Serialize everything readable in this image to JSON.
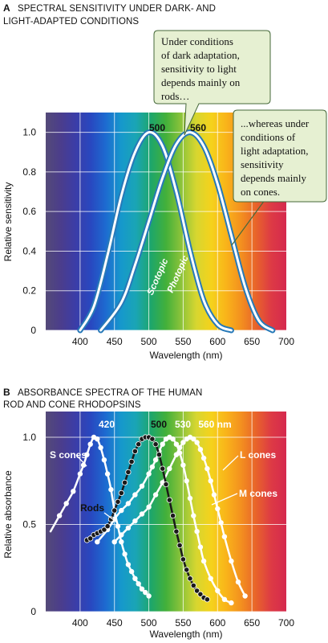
{
  "colors": {
    "spectrum": [
      "#544a78",
      "#4b3d8c",
      "#3b3da8",
      "#2848c0",
      "#1d6bd0",
      "#1698cc",
      "#1aa5b5",
      "#1ea66a",
      "#43b03a",
      "#8cc33a",
      "#d6d630",
      "#f5d21c",
      "#f9b41a",
      "#f38f1f",
      "#e8632b",
      "#dd3a45",
      "#d5294e"
    ],
    "callout_fill": "#e6f0d2",
    "callout_stroke": "#46693a",
    "curve_outline": "#2779b8",
    "rods_curve": "#1a1a1a",
    "cone_curve": "#ffffff"
  },
  "panel_a": {
    "letter": "A",
    "title_line1": "SPECTRAL SENSITIVITY UNDER DARK- AND",
    "title_line2": "LIGHT-ADAPTED CONDITIONS",
    "callout_left": [
      "Under conditions",
      "of dark adaptation,",
      "sensitivity to light",
      "depends mainly on",
      "rods…"
    ],
    "callout_right": [
      "...whereas under",
      "conditions of",
      "light adaptation,",
      "sensitivity",
      "depends mainly",
      "on cones."
    ]
  },
  "panel_b": {
    "letter": "B",
    "title_line1": "ABSORBANCE SPECTRA OF THE HUMAN",
    "title_line2": "ROD AND CONE RHODOPSINS"
  },
  "chart_data": [
    {
      "type": "line",
      "xlabel": "Wavelength (nm)",
      "ylabel": "Relative sensitivity",
      "xlim": [
        350,
        700
      ],
      "ylim": [
        0,
        1.1
      ],
      "xticks": [
        "400",
        "450",
        "500",
        "550",
        "600",
        "650",
        "700"
      ],
      "yticks": [
        "0",
        "0.2",
        "0.4",
        "0.6",
        "0.8",
        "1.0"
      ],
      "grid": true,
      "peak_labels": [
        "500",
        "560"
      ],
      "series": [
        {
          "name": "Scotopic",
          "x": [
            400,
            420,
            440,
            460,
            480,
            500,
            520,
            540,
            560,
            580,
            600,
            620
          ],
          "values": [
            0.0,
            0.12,
            0.38,
            0.68,
            0.9,
            1.0,
            0.93,
            0.7,
            0.4,
            0.15,
            0.03,
            0.0
          ]
        },
        {
          "name": "Photopic",
          "x": [
            430,
            460,
            480,
            500,
            520,
            540,
            560,
            580,
            600,
            620,
            640,
            660,
            680
          ],
          "values": [
            0.0,
            0.14,
            0.33,
            0.55,
            0.77,
            0.94,
            1.0,
            0.93,
            0.74,
            0.48,
            0.22,
            0.05,
            0.0
          ]
        }
      ]
    },
    {
      "type": "line",
      "xlabel": "Wavelength (nm)",
      "ylabel": "Relative absorbance",
      "xlim": [
        350,
        700
      ],
      "ylim": [
        0,
        1.0
      ],
      "xticks": [
        "400",
        "450",
        "500",
        "550",
        "600",
        "650",
        "700"
      ],
      "yticks": [
        "0",
        "0.5",
        "1.0"
      ],
      "grid": true,
      "peak_labels": [
        "420",
        "500",
        "530",
        "560 nm"
      ],
      "series": [
        {
          "name": "S cones",
          "x": [
            357,
            370,
            380,
            390,
            400,
            405,
            410,
            415,
            420,
            425,
            430,
            435,
            440,
            445,
            450,
            455,
            460,
            465,
            470,
            475,
            480,
            485,
            490,
            495,
            500
          ],
          "values": [
            0.46,
            0.55,
            0.62,
            0.69,
            0.79,
            0.84,
            0.9,
            0.96,
            1.0,
            0.99,
            0.94,
            0.87,
            0.79,
            0.7,
            0.58,
            0.49,
            0.4,
            0.33,
            0.27,
            0.23,
            0.19,
            0.16,
            0.13,
            0.11,
            0.09
          ]
        },
        {
          "name": "Rods",
          "x": [
            410,
            415,
            420,
            425,
            430,
            435,
            440,
            445,
            450,
            455,
            460,
            465,
            470,
            475,
            480,
            485,
            490,
            495,
            500,
            505,
            510,
            515,
            520,
            525,
            530,
            535,
            540,
            545,
            550,
            555,
            560,
            565,
            570,
            575,
            580,
            585
          ],
          "values": [
            0.41,
            0.42,
            0.44,
            0.45,
            0.46,
            0.47,
            0.49,
            0.53,
            0.58,
            0.63,
            0.68,
            0.74,
            0.8,
            0.86,
            0.92,
            0.96,
            0.99,
            1.0,
            1.0,
            0.99,
            0.96,
            0.9,
            0.82,
            0.73,
            0.64,
            0.55,
            0.46,
            0.38,
            0.3,
            0.24,
            0.19,
            0.15,
            0.12,
            0.1,
            0.08,
            0.07
          ]
        },
        {
          "name": "M cones",
          "x": [
            425,
            440,
            450,
            460,
            470,
            480,
            490,
            500,
            505,
            510,
            515,
            520,
            525,
            530,
            535,
            540,
            545,
            550,
            555,
            560,
            565,
            570,
            575,
            580,
            590,
            600,
            610,
            620
          ],
          "values": [
            0.4,
            0.47,
            0.53,
            0.58,
            0.62,
            0.67,
            0.72,
            0.79,
            0.83,
            0.87,
            0.92,
            0.96,
            0.99,
            1.0,
            0.99,
            0.96,
            0.91,
            0.84,
            0.75,
            0.65,
            0.55,
            0.46,
            0.37,
            0.29,
            0.19,
            0.12,
            0.07,
            0.05
          ]
        },
        {
          "name": "L cones",
          "x": [
            450,
            460,
            470,
            480,
            490,
            500,
            510,
            520,
            530,
            540,
            545,
            550,
            555,
            560,
            565,
            570,
            575,
            580,
            585,
            590,
            595,
            600,
            605,
            610,
            620,
            630,
            640
          ],
          "values": [
            0.4,
            0.44,
            0.48,
            0.52,
            0.56,
            0.6,
            0.67,
            0.74,
            0.82,
            0.9,
            0.94,
            0.97,
            0.99,
            1.0,
            0.99,
            0.97,
            0.93,
            0.88,
            0.82,
            0.75,
            0.67,
            0.59,
            0.51,
            0.43,
            0.29,
            0.17,
            0.09
          ]
        }
      ]
    }
  ]
}
